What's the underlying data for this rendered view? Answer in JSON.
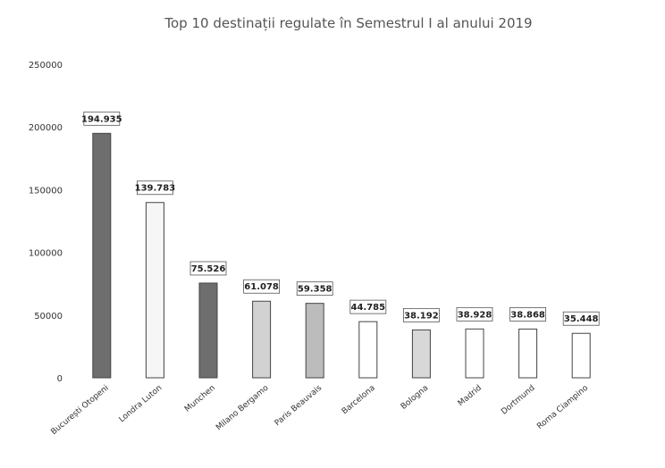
{
  "chart_data": {
    "type": "bar",
    "title": "Top 10 destinații regulate în Semestrul I al anului 2019",
    "xlabel": "",
    "ylabel": "",
    "ylim": [
      0,
      250000
    ],
    "y_ticks": [
      "250000",
      "200000",
      "150000",
      "100000",
      "50000",
      "0"
    ],
    "grid": false,
    "legend": "none",
    "categories": [
      "București Otopeni",
      "Londra Luton",
      "Munchen",
      "Milano Bergamo",
      "Paris Beauvais",
      "Barcelona",
      "Bologna",
      "Madrid",
      "Dortmund",
      "Roma Ciampino"
    ],
    "values": [
      194935,
      139783,
      75526,
      61078,
      59358,
      44785,
      38192,
      38928,
      38868,
      35448
    ],
    "data_labels": [
      "194.935",
      "139.783",
      "75.526",
      "61.078",
      "59.358",
      "44.785",
      "38.192",
      "38.928",
      "38.868",
      "35.448"
    ],
    "bar_colors": [
      "#6e6e6e",
      "#f6f6f6",
      "#6e6e6e",
      "#d2d2d2",
      "#bcbcbc",
      "#ffffff",
      "#d8d8d8",
      "#ffffff",
      "#ffffff",
      "#ffffff"
    ]
  }
}
